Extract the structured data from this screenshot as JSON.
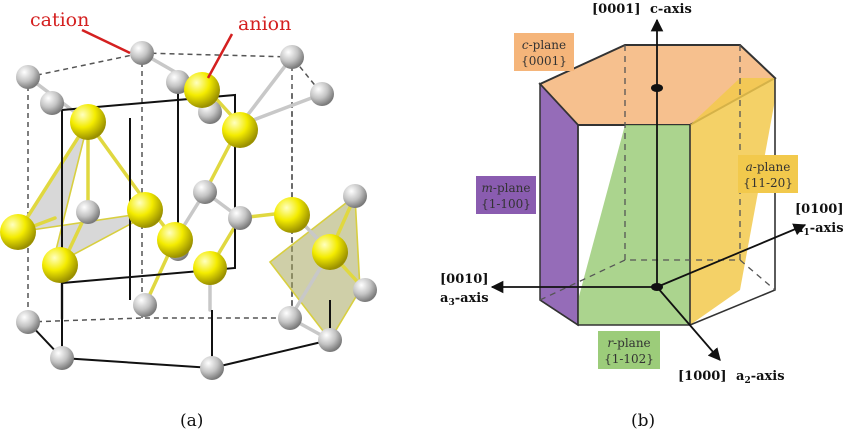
{
  "panel_a": {
    "caption": "(a)",
    "labels": {
      "cation": "cation",
      "anion": "anion"
    },
    "colors": {
      "cation": "#c8c8c8",
      "anion": "#f2ea00",
      "label": "#d42020",
      "tetrahedron_grey": "#b8b8b8",
      "tetrahedron_olive": "#a8a860"
    }
  },
  "panel_b": {
    "caption": "(b)",
    "axes": {
      "c": {
        "index": "[0001]",
        "name": "c-axis"
      },
      "a1": {
        "index": "[0100]",
        "name": "a",
        "sub": "1",
        "suffix": "-axis"
      },
      "a3": {
        "index": "[0010]",
        "name": "a",
        "sub": "3",
        "suffix": "-axis"
      },
      "a2": {
        "index": "[1000]",
        "name": "a",
        "sub": "2",
        "suffix": "-axis"
      }
    },
    "planes": {
      "c": {
        "letter": "c",
        "suffix": "-plane",
        "miller": "{0001}",
        "color": "#f5b57a"
      },
      "m": {
        "letter": "m",
        "suffix": "-plane",
        "miller": "{1-100}",
        "color": "#8a5cb0"
      },
      "a": {
        "letter": "a",
        "suffix": "-plane",
        "miller": "{11-20}",
        "color": "#f2c94c"
      },
      "r": {
        "letter": "r",
        "suffix": "-plane",
        "miller": "{1-102}",
        "color": "#9ccc7a"
      }
    }
  }
}
